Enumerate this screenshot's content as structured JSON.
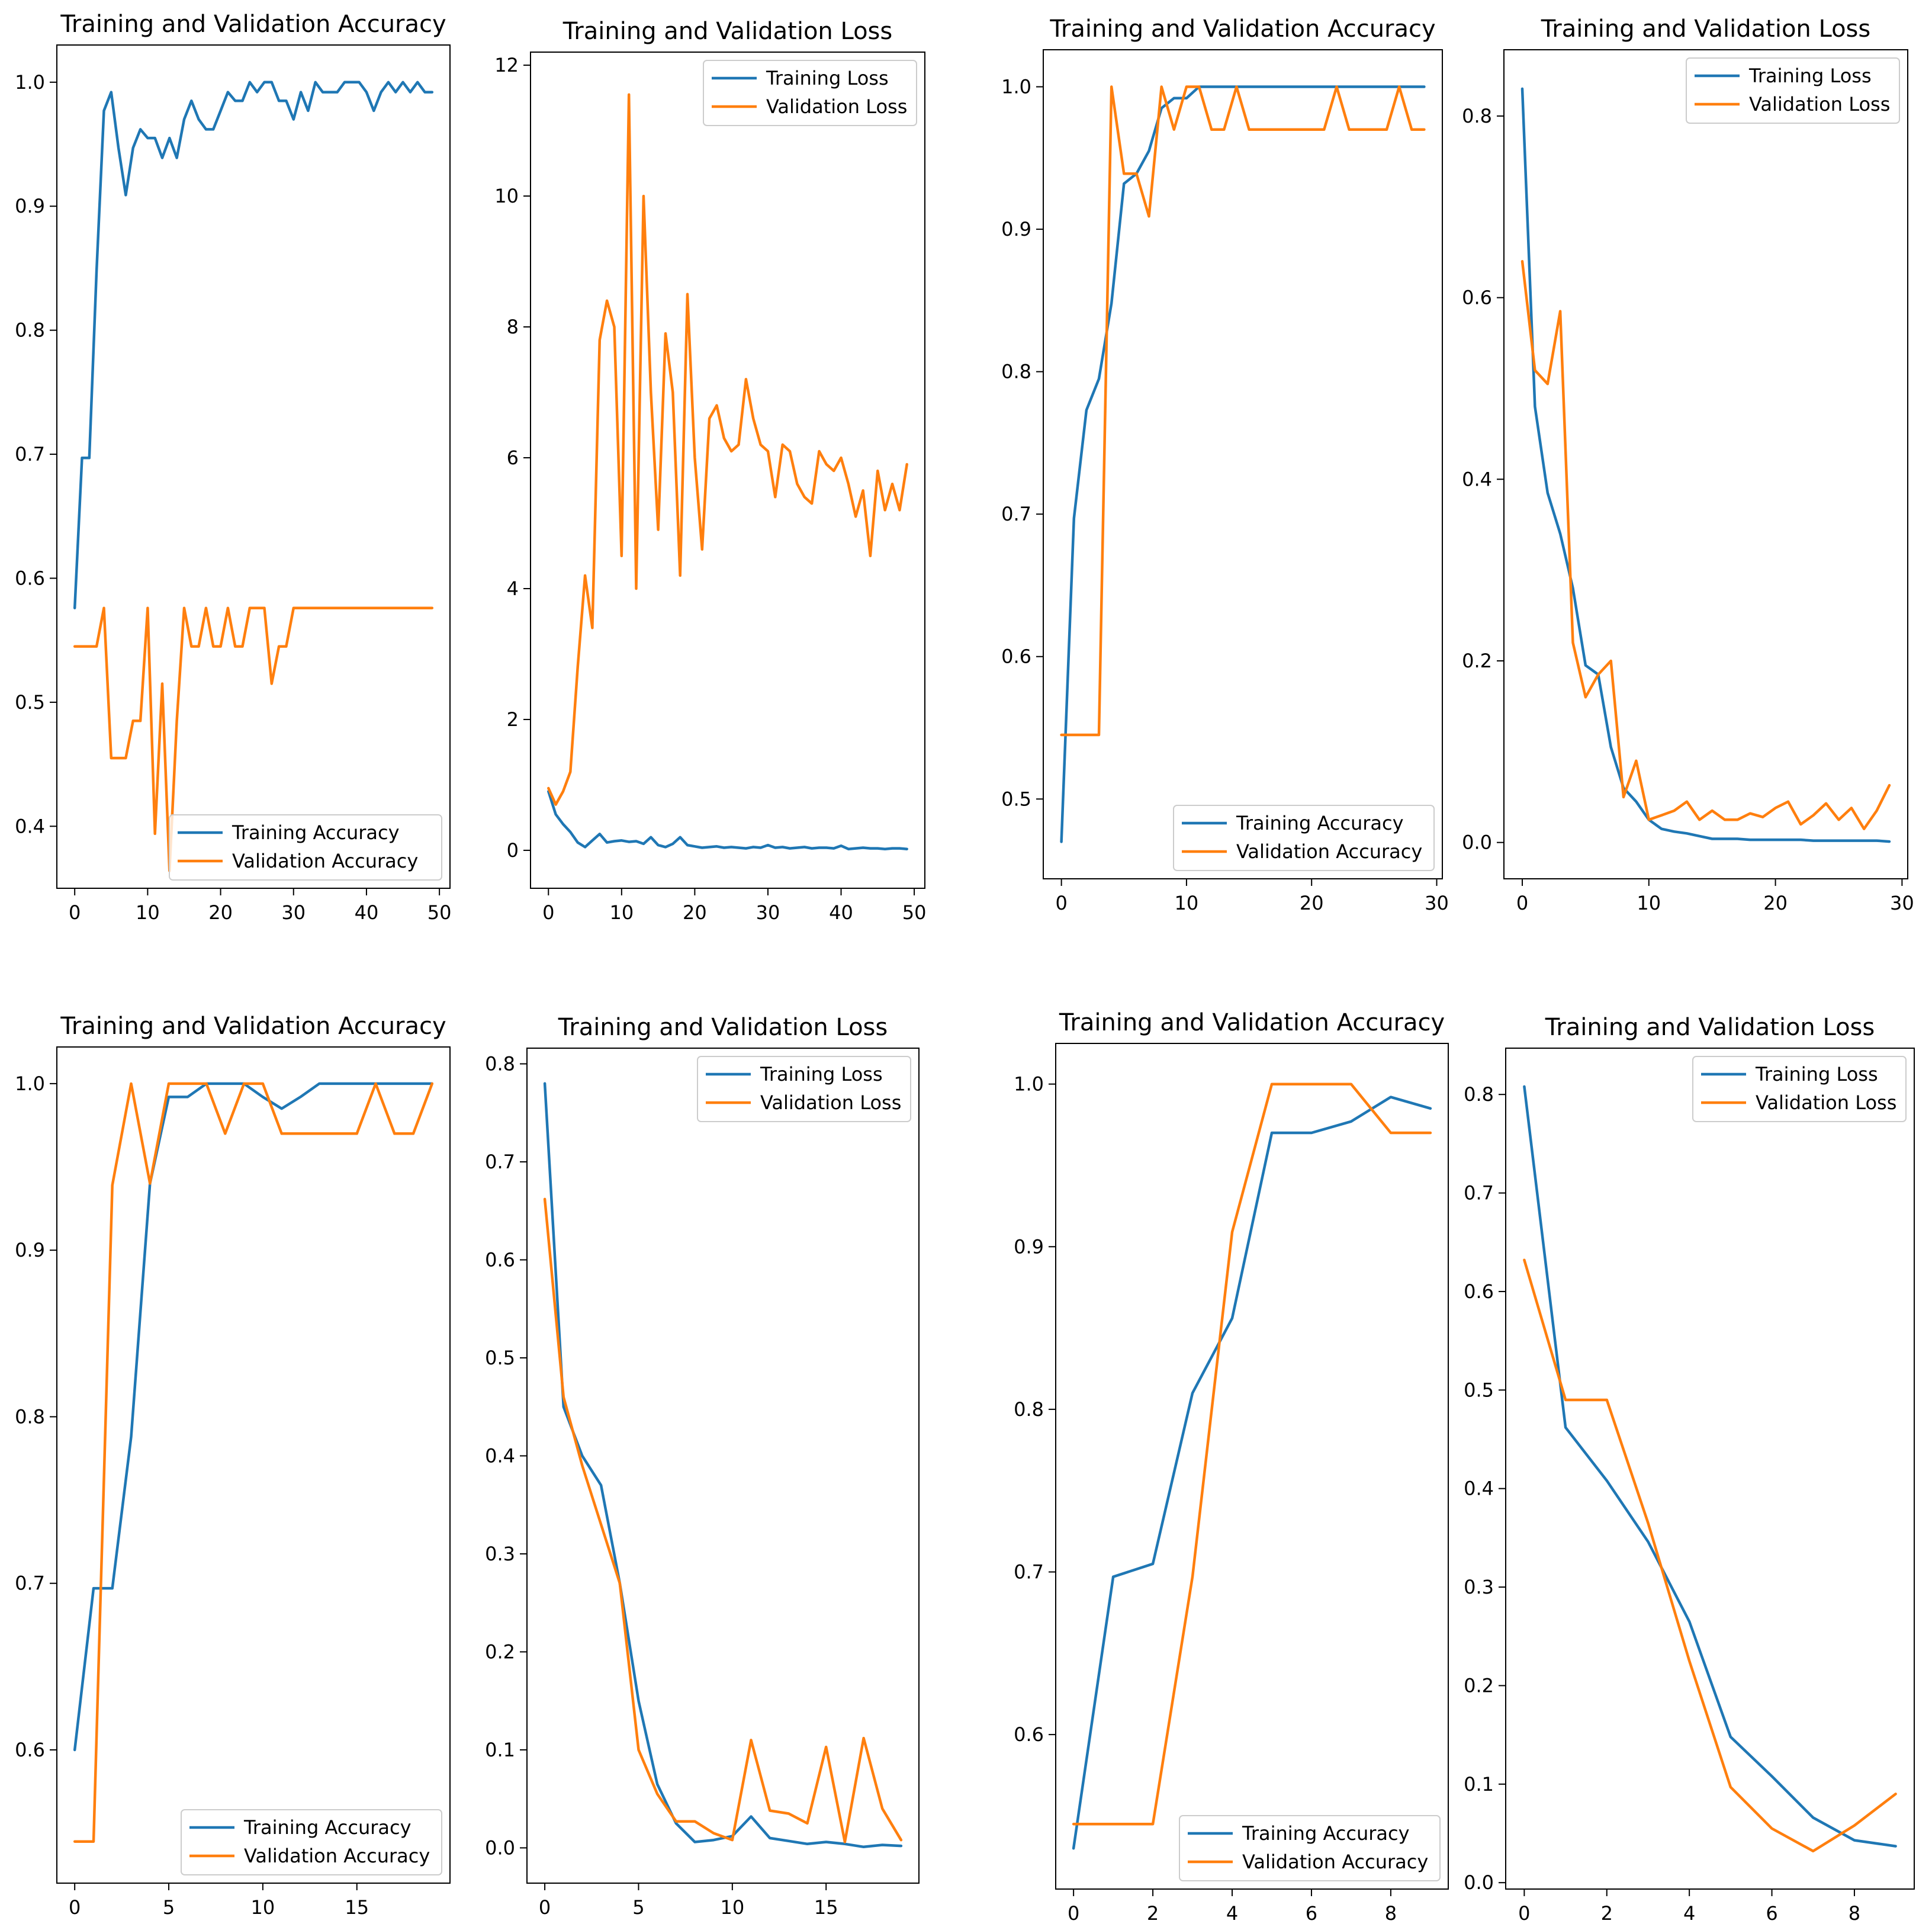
{
  "colors": {
    "training": "#1f77b4",
    "validation": "#ff7f0e",
    "axis": "#000000",
    "legend_border": "#cccccc"
  },
  "chart_data": [
    {
      "type": "line",
      "title": "Training and Validation Accuracy",
      "xlabel": "",
      "ylabel": "",
      "xlim": [
        -2.45,
        51.45
      ],
      "ylim": [
        0.35,
        1.03
      ],
      "xticks": [
        0,
        10,
        20,
        30,
        40,
        50
      ],
      "yticks": [
        0.4,
        0.5,
        0.6,
        0.7,
        0.8,
        0.9,
        1.0
      ],
      "ytick_labels": [
        "0.4",
        "0.5",
        "0.6",
        "0.7",
        "0.8",
        "0.9",
        "1.0"
      ],
      "legend_loc": "lower right",
      "x": [
        0,
        1,
        2,
        3,
        4,
        5,
        6,
        7,
        8,
        9,
        10,
        11,
        12,
        13,
        14,
        15,
        16,
        17,
        18,
        19,
        20,
        21,
        22,
        23,
        24,
        25,
        26,
        27,
        28,
        29,
        30,
        31,
        32,
        33,
        34,
        35,
        36,
        37,
        38,
        39,
        40,
        41,
        42,
        43,
        44,
        45,
        46,
        47,
        48,
        49
      ],
      "series": [
        {
          "name": "Training Accuracy",
          "color": "training",
          "values": [
            0.576,
            0.697,
            0.697,
            0.848,
            0.977,
            0.992,
            0.947,
            0.909,
            0.947,
            0.962,
            0.955,
            0.955,
            0.939,
            0.955,
            0.939,
            0.97,
            0.985,
            0.97,
            0.962,
            0.962,
            0.977,
            0.992,
            0.985,
            0.985,
            1.0,
            0.992,
            1.0,
            1.0,
            0.985,
            0.985,
            0.97,
            0.992,
            0.977,
            1.0,
            0.992,
            0.992,
            0.992,
            1.0,
            1.0,
            1.0,
            0.992,
            0.977,
            0.992,
            1.0,
            0.992,
            1.0,
            0.992,
            1.0,
            0.992,
            0.992
          ]
        },
        {
          "name": "Validation Accuracy",
          "color": "validation",
          "values": [
            0.545,
            0.545,
            0.545,
            0.545,
            0.576,
            0.455,
            0.455,
            0.455,
            0.485,
            0.485,
            0.576,
            0.394,
            0.515,
            0.364,
            0.485,
            0.576,
            0.545,
            0.545,
            0.576,
            0.545,
            0.545,
            0.576,
            0.545,
            0.545,
            0.576,
            0.576,
            0.576,
            0.515,
            0.545,
            0.545,
            0.576,
            0.576,
            0.576,
            0.576,
            0.576,
            0.576,
            0.576,
            0.576,
            0.576,
            0.576,
            0.576,
            0.576,
            0.576,
            0.576,
            0.576,
            0.576,
            0.576,
            0.576,
            0.576,
            0.576
          ]
        }
      ]
    },
    {
      "type": "line",
      "title": "Training and Validation Loss",
      "xlabel": "",
      "ylabel": "",
      "xlim": [
        -2.45,
        51.45
      ],
      "ylim": [
        -0.58,
        12.2
      ],
      "xticks": [
        0,
        10,
        20,
        30,
        40,
        50
      ],
      "yticks": [
        0,
        2,
        4,
        6,
        8,
        10,
        12
      ],
      "ytick_labels": [
        "0",
        "2",
        "4",
        "6",
        "8",
        "10",
        "12"
      ],
      "legend_loc": "upper right",
      "x": [
        0,
        1,
        2,
        3,
        4,
        5,
        6,
        7,
        8,
        9,
        10,
        11,
        12,
        13,
        14,
        15,
        16,
        17,
        18,
        19,
        20,
        21,
        22,
        23,
        24,
        25,
        26,
        27,
        28,
        29,
        30,
        31,
        32,
        33,
        34,
        35,
        36,
        37,
        38,
        39,
        40,
        41,
        42,
        43,
        44,
        45,
        46,
        47,
        48,
        49
      ],
      "series": [
        {
          "name": "Training Loss",
          "color": "training",
          "values": [
            0.9,
            0.55,
            0.4,
            0.28,
            0.12,
            0.05,
            0.15,
            0.25,
            0.12,
            0.14,
            0.15,
            0.13,
            0.14,
            0.1,
            0.2,
            0.08,
            0.05,
            0.1,
            0.2,
            0.08,
            0.06,
            0.04,
            0.05,
            0.06,
            0.04,
            0.05,
            0.04,
            0.03,
            0.05,
            0.04,
            0.08,
            0.04,
            0.05,
            0.03,
            0.04,
            0.05,
            0.03,
            0.04,
            0.04,
            0.03,
            0.07,
            0.02,
            0.03,
            0.04,
            0.03,
            0.03,
            0.02,
            0.03,
            0.03,
            0.02
          ]
        },
        {
          "name": "Validation Loss",
          "color": "validation",
          "values": [
            0.95,
            0.7,
            0.9,
            1.2,
            2.8,
            4.2,
            3.4,
            7.8,
            8.4,
            8.0,
            4.5,
            11.55,
            4.0,
            10.0,
            7.0,
            4.9,
            7.9,
            7.0,
            4.2,
            8.5,
            6.0,
            4.6,
            6.6,
            6.8,
            6.3,
            6.1,
            6.2,
            7.2,
            6.6,
            6.2,
            6.1,
            5.4,
            6.2,
            6.1,
            5.6,
            5.4,
            5.3,
            6.1,
            5.9,
            5.8,
            6.0,
            5.6,
            5.1,
            5.5,
            4.5,
            5.8,
            5.2,
            5.6,
            5.2,
            5.9
          ]
        }
      ]
    },
    {
      "type": "line",
      "title": "Training and Validation Accuracy",
      "xlabel": "",
      "ylabel": "",
      "xlim": [
        -1.45,
        30.45
      ],
      "ylim": [
        0.444,
        1.026
      ],
      "xticks": [
        0,
        10,
        20,
        30
      ],
      "yticks": [
        0.5,
        0.6,
        0.7,
        0.8,
        0.9,
        1.0
      ],
      "ytick_labels": [
        "0.5",
        "0.6",
        "0.7",
        "0.8",
        "0.9",
        "1.0"
      ],
      "legend_loc": "lower right",
      "x": [
        0,
        1,
        2,
        3,
        4,
        5,
        6,
        7,
        8,
        9,
        10,
        11,
        12,
        13,
        14,
        15,
        16,
        17,
        18,
        19,
        20,
        21,
        22,
        23,
        24,
        25,
        26,
        27,
        28,
        29
      ],
      "series": [
        {
          "name": "Training Accuracy",
          "color": "training",
          "values": [
            0.47,
            0.697,
            0.773,
            0.795,
            0.848,
            0.932,
            0.939,
            0.955,
            0.985,
            0.992,
            0.992,
            1.0,
            1.0,
            1.0,
            1.0,
            1.0,
            1.0,
            1.0,
            1.0,
            1.0,
            1.0,
            1.0,
            1.0,
            1.0,
            1.0,
            1.0,
            1.0,
            1.0,
            1.0,
            1.0
          ]
        },
        {
          "name": "Validation Accuracy",
          "color": "validation",
          "values": [
            0.545,
            0.545,
            0.545,
            0.545,
            1.0,
            0.939,
            0.939,
            0.909,
            1.0,
            0.97,
            1.0,
            1.0,
            0.97,
            0.97,
            1.0,
            0.97,
            0.97,
            0.97,
            0.97,
            0.97,
            0.97,
            0.97,
            1.0,
            0.97,
            0.97,
            0.97,
            0.97,
            1.0,
            0.97,
            0.97
          ]
        }
      ]
    },
    {
      "type": "line",
      "title": "Training and Validation Loss",
      "xlabel": "",
      "ylabel": "",
      "xlim": [
        -1.45,
        30.45
      ],
      "ylim": [
        -0.04,
        0.873
      ],
      "xticks": [
        0,
        10,
        20,
        30
      ],
      "yticks": [
        0.0,
        0.2,
        0.4,
        0.6,
        0.8
      ],
      "ytick_labels": [
        "0.0",
        "0.2",
        "0.4",
        "0.6",
        "0.8"
      ],
      "legend_loc": "upper right",
      "x": [
        0,
        1,
        2,
        3,
        4,
        5,
        6,
        7,
        8,
        9,
        10,
        11,
        12,
        13,
        14,
        15,
        16,
        17,
        18,
        19,
        20,
        21,
        22,
        23,
        24,
        25,
        26,
        27,
        28,
        29
      ],
      "series": [
        {
          "name": "Training Loss",
          "color": "training",
          "values": [
            0.83,
            0.48,
            0.385,
            0.34,
            0.28,
            0.195,
            0.185,
            0.105,
            0.06,
            0.045,
            0.025,
            0.015,
            0.012,
            0.01,
            0.007,
            0.004,
            0.004,
            0.004,
            0.003,
            0.003,
            0.003,
            0.003,
            0.003,
            0.002,
            0.002,
            0.002,
            0.002,
            0.002,
            0.002,
            0.001
          ]
        },
        {
          "name": "Validation Loss",
          "color": "validation",
          "values": [
            0.64,
            0.52,
            0.505,
            0.585,
            0.22,
            0.16,
            0.185,
            0.2,
            0.05,
            0.09,
            0.025,
            0.03,
            0.035,
            0.045,
            0.025,
            0.035,
            0.025,
            0.025,
            0.032,
            0.028,
            0.038,
            0.045,
            0.02,
            0.03,
            0.043,
            0.025,
            0.038,
            0.015,
            0.035,
            0.063
          ]
        }
      ]
    },
    {
      "type": "line",
      "title": "Training and Validation Accuracy",
      "xlabel": "",
      "ylabel": "",
      "xlim": [
        -0.95,
        19.95
      ],
      "ylim": [
        0.52,
        1.022
      ],
      "xticks": [
        0,
        5,
        10,
        15
      ],
      "yticks": [
        0.6,
        0.7,
        0.8,
        0.9,
        1.0
      ],
      "ytick_labels": [
        "0.6",
        "0.7",
        "0.8",
        "0.9",
        "1.0"
      ],
      "legend_loc": "lower right",
      "x": [
        0,
        1,
        2,
        3,
        4,
        5,
        6,
        7,
        8,
        9,
        10,
        11,
        12,
        13,
        14,
        15,
        16,
        17,
        18,
        19
      ],
      "series": [
        {
          "name": "Training Accuracy",
          "color": "training",
          "values": [
            0.6,
            0.697,
            0.697,
            0.788,
            0.94,
            0.992,
            0.992,
            1.0,
            1.0,
            1.0,
            0.992,
            0.985,
            0.992,
            1.0,
            1.0,
            1.0,
            1.0,
            1.0,
            1.0,
            1.0
          ]
        },
        {
          "name": "Validation Accuracy",
          "color": "validation",
          "values": [
            0.545,
            0.545,
            0.939,
            1.0,
            0.94,
            1.0,
            1.0,
            1.0,
            0.97,
            1.0,
            1.0,
            0.97,
            0.97,
            0.97,
            0.97,
            0.97,
            1.0,
            0.97,
            0.97,
            1.0
          ]
        }
      ]
    },
    {
      "type": "line",
      "title": "Training and Validation Loss",
      "xlabel": "",
      "ylabel": "",
      "xlim": [
        -0.95,
        19.95
      ],
      "ylim": [
        -0.036,
        0.816
      ],
      "xticks": [
        0,
        5,
        10,
        15
      ],
      "yticks": [
        0.0,
        0.1,
        0.2,
        0.3,
        0.4,
        0.5,
        0.6,
        0.7,
        0.8
      ],
      "ytick_labels": [
        "0.0",
        "0.1",
        "0.2",
        "0.3",
        "0.4",
        "0.5",
        "0.6",
        "0.7",
        "0.8"
      ],
      "legend_loc": "upper right",
      "x": [
        0,
        1,
        2,
        3,
        4,
        5,
        6,
        7,
        8,
        9,
        10,
        11,
        12,
        13,
        14,
        15,
        16,
        17,
        18,
        19
      ],
      "series": [
        {
          "name": "Training Loss",
          "color": "training",
          "values": [
            0.78,
            0.45,
            0.4,
            0.37,
            0.27,
            0.15,
            0.065,
            0.025,
            0.006,
            0.008,
            0.012,
            0.032,
            0.01,
            0.007,
            0.004,
            0.006,
            0.004,
            0.001,
            0.003,
            0.002
          ]
        },
        {
          "name": "Validation Loss",
          "color": "validation",
          "values": [
            0.662,
            0.46,
            0.39,
            0.33,
            0.27,
            0.1,
            0.055,
            0.027,
            0.027,
            0.015,
            0.008,
            0.11,
            0.038,
            0.035,
            0.025,
            0.103,
            0.006,
            0.112,
            0.04,
            0.008
          ]
        }
      ]
    },
    {
      "type": "line",
      "title": "Training and Validation Accuracy",
      "xlabel": "",
      "ylabel": "",
      "xlim": [
        -0.45,
        9.45
      ],
      "ylim": [
        0.505,
        1.025
      ],
      "xticks": [
        0,
        2,
        4,
        6,
        8
      ],
      "yticks": [
        0.6,
        0.7,
        0.8,
        0.9,
        1.0
      ],
      "ytick_labels": [
        "0.6",
        "0.7",
        "0.8",
        "0.9",
        "1.0"
      ],
      "legend_loc": "lower right",
      "x": [
        0,
        1,
        2,
        3,
        4,
        5,
        6,
        7,
        8,
        9
      ],
      "series": [
        {
          "name": "Training Accuracy",
          "color": "training",
          "values": [
            0.53,
            0.697,
            0.705,
            0.81,
            0.856,
            0.97,
            0.97,
            0.977,
            0.992,
            0.985
          ]
        },
        {
          "name": "Validation Accuracy",
          "color": "validation",
          "values": [
            0.545,
            0.545,
            0.545,
            0.697,
            0.909,
            1.0,
            1.0,
            1.0,
            0.97,
            0.97
          ]
        }
      ]
    },
    {
      "type": "line",
      "title": "Training and Validation Loss",
      "xlabel": "",
      "ylabel": "",
      "xlim": [
        -0.45,
        9.45
      ],
      "ylim": [
        -0.0065,
        0.847
      ],
      "xticks": [
        0,
        2,
        4,
        6,
        8
      ],
      "yticks": [
        0.0,
        0.1,
        0.2,
        0.3,
        0.4,
        0.5,
        0.6,
        0.7,
        0.8
      ],
      "ytick_labels": [
        "0.0",
        "0.1",
        "0.2",
        "0.3",
        "0.4",
        "0.5",
        "0.6",
        "0.7",
        "0.8"
      ],
      "legend_loc": "upper right",
      "x": [
        0,
        1,
        2,
        3,
        4,
        5,
        6,
        7,
        8,
        9
      ],
      "series": [
        {
          "name": "Training Loss",
          "color": "training",
          "values": [
            0.808,
            0.462,
            0.408,
            0.346,
            0.265,
            0.148,
            0.108,
            0.066,
            0.043,
            0.037
          ]
        },
        {
          "name": "Validation Loss",
          "color": "validation",
          "values": [
            0.632,
            0.49,
            0.49,
            0.365,
            0.225,
            0.097,
            0.055,
            0.032,
            0.058,
            0.09
          ]
        }
      ]
    }
  ]
}
